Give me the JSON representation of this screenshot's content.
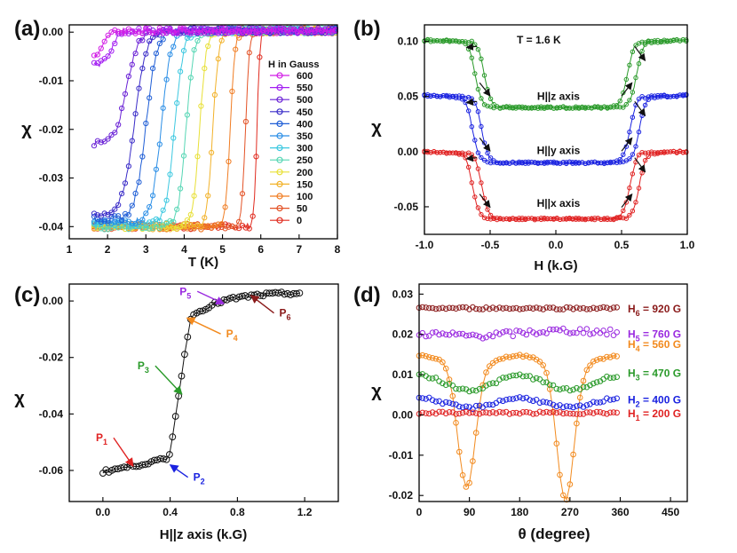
{
  "chart_data": [
    {
      "panel_label": "(a)",
      "type": "scatter",
      "xlabel": "T (K)",
      "ylabel": "χ",
      "xlim": [
        1,
        8
      ],
      "ylim": [
        -0.0425,
        0.0015
      ],
      "xticks": [
        "1",
        "2",
        "3",
        "4",
        "5",
        "6",
        "7",
        "8"
      ],
      "yticks": [
        "0.00",
        "-0.01",
        "-0.02",
        "-0.03",
        "-0.04"
      ],
      "legend_title": "H in Gauss",
      "series": [
        {
          "name": "600",
          "color": "#d21ee6",
          "tc": 1.9,
          "width": 0.35,
          "low": -0.0055
        },
        {
          "name": "550",
          "color": "#a31ef2",
          "tc": 2.1,
          "width": 0.45,
          "low": -0.007
        },
        {
          "name": "500",
          "color": "#6a22d6",
          "tc": 2.5,
          "width": 0.6,
          "low": -0.023
        },
        {
          "name": "450",
          "color": "#3a2cc8",
          "tc": 2.7,
          "width": 0.6,
          "low": -0.0375
        },
        {
          "name": "400",
          "color": "#1f5ed6",
          "tc": 3.0,
          "width": 0.55,
          "low": -0.0385
        },
        {
          "name": "350",
          "color": "#2a8ee6",
          "tc": 3.4,
          "width": 0.5,
          "low": -0.039
        },
        {
          "name": "300",
          "color": "#3cc8e0",
          "tc": 3.75,
          "width": 0.45,
          "low": -0.0395
        },
        {
          "name": "250",
          "color": "#56d6b4",
          "tc": 4.05,
          "width": 0.4,
          "low": -0.04
        },
        {
          "name": "200",
          "color": "#e8e036",
          "tc": 4.4,
          "width": 0.35,
          "low": -0.04
        },
        {
          "name": "150",
          "color": "#f2b22a",
          "tc": 4.75,
          "width": 0.3,
          "low": -0.04
        },
        {
          "name": "100",
          "color": "#f07c22",
          "tc": 5.2,
          "width": 0.25,
          "low": -0.04
        },
        {
          "name": "50",
          "color": "#e35226",
          "tc": 5.6,
          "width": 0.2,
          "low": -0.04
        },
        {
          "name": "0",
          "color": "#e02a1e",
          "tc": 5.9,
          "width": 0.15,
          "low": -0.04
        }
      ]
    },
    {
      "panel_label": "(b)",
      "type": "line",
      "xlabel": "H (k.G)",
      "ylabel": "χ",
      "xlim": [
        -1.0,
        1.0
      ],
      "ylim": [
        -0.075,
        0.115
      ],
      "xticks": [
        "-1.0",
        "-0.5",
        "0.0",
        "0.5",
        "1.0"
      ],
      "yticks": [
        "0.10",
        "0.05",
        "0.00",
        "-0.05"
      ],
      "annotation": "T = 1.6 K",
      "series": [
        {
          "name": "H||z axis",
          "color": "#2a9a2a",
          "top": 0.101,
          "bottom": 0.04,
          "edge": 0.58
        },
        {
          "name": "H||y axis",
          "color": "#1a22e0",
          "top": 0.051,
          "bottom": -0.01,
          "edge": 0.6
        },
        {
          "name": "H||x axis",
          "color": "#e02222",
          "top": 0.0,
          "bottom": -0.061,
          "edge": 0.6
        }
      ]
    },
    {
      "panel_label": "(c)",
      "type": "scatter",
      "xlabel": "H||z axis (k.G)",
      "ylabel": "χ",
      "xlim": [
        -0.2,
        1.4
      ],
      "ylim": [
        -0.071,
        0.006
      ],
      "xticks": [
        "0.0",
        "0.4",
        "0.8",
        "1.2"
      ],
      "yticks": [
        "0.00",
        "-0.02",
        "-0.04",
        "-0.06"
      ],
      "series": [
        {
          "name": "H||z axis",
          "color": "#111111",
          "x_range": [
            0.0,
            1.18
          ],
          "low": -0.06,
          "high": 0.002
        }
      ],
      "annotations": [
        {
          "label": "P",
          "sub": "1",
          "color": "#e02222",
          "x": 0.18,
          "y": -0.0585
        },
        {
          "label": "P",
          "sub": "2",
          "color": "#1a22e0",
          "x": 0.4,
          "y": -0.058
        },
        {
          "label": "P",
          "sub": "3",
          "color": "#2a9a2a",
          "x": 0.47,
          "y": -0.033
        },
        {
          "label": "P",
          "sub": "4",
          "color": "#f28a1e",
          "x": 0.5,
          "y": -0.006
        },
        {
          "label": "P",
          "sub": "5",
          "color": "#9a2ae0",
          "x": 0.72,
          "y": -0.001
        },
        {
          "label": "P",
          "sub": "6",
          "color": "#8a1a1a",
          "x": 0.88,
          "y": 0.002
        }
      ]
    },
    {
      "panel_label": "(d)",
      "type": "scatter",
      "xlabel": "θ (degree)",
      "ylabel": "χ",
      "xlim": [
        0,
        480
      ],
      "ylim": [
        -0.0215,
        0.0325
      ],
      "xticks": [
        "0",
        "90",
        "180",
        "270",
        "360",
        "450"
      ],
      "yticks": [
        "0.03",
        "0.02",
        "0.01",
        "0.00",
        "-0.01",
        "-0.02"
      ],
      "series": [
        {
          "name": "H6 = 920 G",
          "label": "H",
          "sub": "6",
          "value": " = 920 G",
          "color": "#8a1a1a",
          "base": 0.0265,
          "amp": 0.0003,
          "kind": "flat"
        },
        {
          "name": "H5 = 760 G",
          "label": "H",
          "sub": "5",
          "value": " = 760 G",
          "color": "#9a2ae0",
          "base": 0.0203,
          "amp": 0.0008,
          "kind": "flat"
        },
        {
          "name": "H4 = 560 G",
          "label": "H",
          "sub": "4",
          "value": " = 560 G",
          "color": "#f28a1e",
          "base": 0.014,
          "amp": 0.0,
          "kind": "dips"
        },
        {
          "name": "H3 = 470 G",
          "label": "H",
          "sub": "3",
          "value": " = 470 G",
          "color": "#2a9a2a",
          "base": 0.009,
          "amp": 0.003,
          "kind": "wave"
        },
        {
          "name": "H2 = 400 G",
          "label": "H",
          "sub": "2",
          "value": " = 400 G",
          "color": "#1a22e0",
          "base": 0.004,
          "amp": 0.002,
          "kind": "wave"
        },
        {
          "name": "H1 = 200 G",
          "label": "H",
          "sub": "1",
          "value": " = 200 G",
          "color": "#e02222",
          "base": 0.0005,
          "amp": 0.0003,
          "kind": "flat"
        }
      ]
    }
  ]
}
